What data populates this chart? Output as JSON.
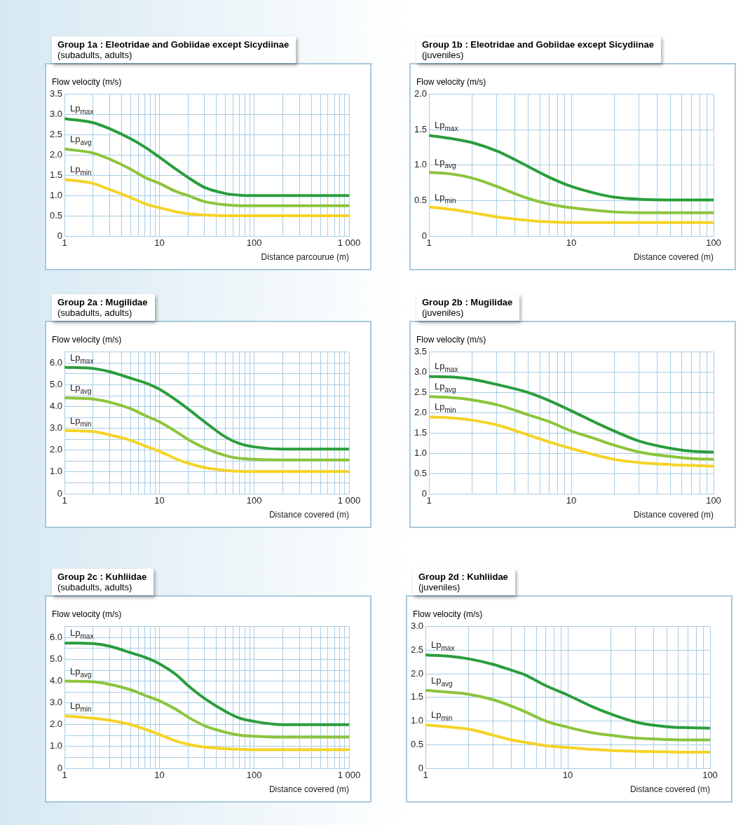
{
  "chart_data": [
    {
      "type": "line",
      "title": "Group 1a : Eleotridae and Gobiidae except Sicydiinae",
      "subtitle": "(subadults, adults)",
      "ylabel": "Flow velocity (m/s)",
      "xlabel": "Distance parcourue (m)",
      "log": "x",
      "grid": true,
      "xlim": [
        1,
        1000
      ],
      "ylim": [
        0,
        3.5
      ],
      "xticks": [
        1,
        {
          "value": 2,
          "label": null
        },
        {
          "value": 3,
          "label": null
        },
        {
          "value": 4,
          "label": null
        },
        {
          "value": 5,
          "label": null
        },
        {
          "value": 6,
          "label": null
        },
        {
          "value": 7,
          "label": null
        },
        {
          "value": 8,
          "label": null
        },
        {
          "value": 9,
          "label": null
        },
        10,
        {
          "value": 20,
          "label": null
        },
        {
          "value": 30,
          "label": null
        },
        {
          "value": 40,
          "label": null
        },
        {
          "value": 50,
          "label": null
        },
        {
          "value": 60,
          "label": null
        },
        {
          "value": 70,
          "label": null
        },
        {
          "value": 80,
          "label": null
        },
        {
          "value": 90,
          "label": null
        },
        100,
        {
          "value": 200,
          "label": null
        },
        {
          "value": 300,
          "label": null
        },
        {
          "value": 400,
          "label": null
        },
        {
          "value": 500,
          "label": null
        },
        {
          "value": 600,
          "label": null
        },
        {
          "value": 700,
          "label": null
        },
        {
          "value": 800,
          "label": null
        },
        {
          "value": 900,
          "label": null
        },
        {
          "value": 1000,
          "label": "1 000"
        }
      ],
      "yticks": [
        0,
        0.5,
        {
          "value": 1,
          "label": "1.0"
        },
        1.5,
        {
          "value": 2,
          "label": "2.0"
        },
        2.5,
        {
          "value": 3,
          "label": "3.0"
        },
        3.5
      ],
      "x": [
        1,
        2,
        3,
        5,
        7,
        10,
        15,
        20,
        30,
        50,
        70,
        100,
        1000
      ],
      "series": [
        {
          "name": "Lp$_{max}$",
          "color": "#2a9d3c",
          "values": [
            2.9,
            2.8,
            2.65,
            2.4,
            2.2,
            1.95,
            1.65,
            1.45,
            1.2,
            1.05,
            1.01,
            1.0,
            1.0
          ]
        },
        {
          "name": "Lp$_{avg}$",
          "color": "#8cc43c",
          "values": [
            2.15,
            2.05,
            1.9,
            1.65,
            1.45,
            1.3,
            1.1,
            1.0,
            0.85,
            0.77,
            0.75,
            0.75,
            0.75
          ]
        },
        {
          "name": "Lp$_{min}$",
          "color": "#f5d327",
          "values": [
            1.4,
            1.3,
            1.15,
            0.95,
            0.8,
            0.7,
            0.6,
            0.55,
            0.52,
            0.5,
            0.5,
            0.5,
            0.5
          ]
        }
      ]
    },
    {
      "type": "line",
      "title": "Group 1b : Eleotridae and Gobiidae except Sicydiinae",
      "subtitle": "(juveniles)",
      "ylabel": "Flow velocity (m/s)",
      "xlabel": "Distance covered (m)",
      "log": "x",
      "grid": true,
      "xlim": [
        1,
        100
      ],
      "ylim": [
        0,
        2
      ],
      "xticks": [
        1,
        {
          "value": 2,
          "label": null
        },
        {
          "value": 3,
          "label": null
        },
        {
          "value": 4,
          "label": null
        },
        {
          "value": 5,
          "label": null
        },
        {
          "value": 6,
          "label": null
        },
        {
          "value": 7,
          "label": null
        },
        {
          "value": 8,
          "label": null
        },
        {
          "value": 9,
          "label": null
        },
        10,
        {
          "value": 20,
          "label": null
        },
        {
          "value": 30,
          "label": null
        },
        {
          "value": 40,
          "label": null
        },
        {
          "value": 50,
          "label": null
        },
        {
          "value": 60,
          "label": null
        },
        {
          "value": 70,
          "label": null
        },
        {
          "value": 80,
          "label": null
        },
        {
          "value": 90,
          "label": null
        },
        100
      ],
      "yticks": [
        0,
        0.5,
        {
          "value": 1,
          "label": "1.0"
        },
        1.5,
        {
          "value": 2,
          "label": "2.0"
        }
      ],
      "x": [
        1,
        1.5,
        2,
        3,
        4,
        5,
        7,
        10,
        15,
        20,
        30,
        50,
        100
      ],
      "series": [
        {
          "name": "Lp$_{max}$",
          "color": "#2a9d3c",
          "values": [
            1.42,
            1.37,
            1.32,
            1.2,
            1.08,
            0.98,
            0.83,
            0.7,
            0.6,
            0.55,
            0.52,
            0.51,
            0.51
          ]
        },
        {
          "name": "Lp$_{avg}$",
          "color": "#8cc43c",
          "values": [
            0.9,
            0.87,
            0.82,
            0.7,
            0.6,
            0.53,
            0.45,
            0.4,
            0.36,
            0.34,
            0.33,
            0.33,
            0.33
          ]
        },
        {
          "name": "Lp$_{min}$",
          "color": "#f5d327",
          "values": [
            0.41,
            0.37,
            0.33,
            0.27,
            0.24,
            0.22,
            0.2,
            0.19,
            0.19,
            0.19,
            0.19,
            0.19,
            0.19
          ]
        }
      ]
    },
    {
      "type": "line",
      "title": "Group 2a : Mugilidae",
      "subtitle": "(subadults, adults)",
      "ylabel": "Flow velocity (m/s)",
      "xlabel": "Distance covered (m)",
      "log": "x",
      "grid": true,
      "xlim": [
        1,
        1000
      ],
      "ylim": [
        0,
        6.5
      ],
      "xticks": [
        1,
        {
          "value": 2,
          "label": null
        },
        {
          "value": 3,
          "label": null
        },
        {
          "value": 4,
          "label": null
        },
        {
          "value": 5,
          "label": null
        },
        {
          "value": 6,
          "label": null
        },
        {
          "value": 7,
          "label": null
        },
        {
          "value": 8,
          "label": null
        },
        {
          "value": 9,
          "label": null
        },
        10,
        {
          "value": 20,
          "label": null
        },
        {
          "value": 30,
          "label": null
        },
        {
          "value": 40,
          "label": null
        },
        {
          "value": 50,
          "label": null
        },
        {
          "value": 60,
          "label": null
        },
        {
          "value": 70,
          "label": null
        },
        {
          "value": 80,
          "label": null
        },
        {
          "value": 90,
          "label": null
        },
        100,
        {
          "value": 200,
          "label": null
        },
        {
          "value": 300,
          "label": null
        },
        {
          "value": 400,
          "label": null
        },
        {
          "value": 500,
          "label": null
        },
        {
          "value": 600,
          "label": null
        },
        {
          "value": 700,
          "label": null
        },
        {
          "value": 800,
          "label": null
        },
        {
          "value": 900,
          "label": null
        },
        {
          "value": 1000,
          "label": "1 000"
        }
      ],
      "yticks": [
        0,
        {
          "value": 0.5,
          "label": null
        },
        {
          "value": 1,
          "label": "1.0"
        },
        {
          "value": 1.5,
          "label": null
        },
        {
          "value": 2,
          "label": "2.0"
        },
        {
          "value": 2.5,
          "label": null
        },
        {
          "value": 3,
          "label": "3.0"
        },
        {
          "value": 3.5,
          "label": null
        },
        {
          "value": 4,
          "label": "4.0"
        },
        {
          "value": 4.5,
          "label": null
        },
        {
          "value": 5,
          "label": "5.0"
        },
        {
          "value": 5.5,
          "label": null
        },
        {
          "value": 6,
          "label": "6.0"
        },
        {
          "value": 6.5,
          "label": null
        }
      ],
      "x": [
        1,
        2,
        3,
        5,
        7,
        10,
        15,
        20,
        30,
        50,
        70,
        100,
        200,
        1000
      ],
      "series": [
        {
          "name": "Lp$_{max}$",
          "color": "#2a9d3c",
          "values": [
            5.8,
            5.75,
            5.6,
            5.3,
            5.1,
            4.8,
            4.3,
            3.9,
            3.3,
            2.6,
            2.3,
            2.15,
            2.05,
            2.05
          ]
        },
        {
          "name": "Lp$_{avg}$",
          "color": "#8cc43c",
          "values": [
            4.4,
            4.35,
            4.2,
            3.9,
            3.6,
            3.3,
            2.85,
            2.5,
            2.1,
            1.75,
            1.62,
            1.58,
            1.55,
            1.55
          ]
        },
        {
          "name": "Lp$_{min}$",
          "color": "#f5d327",
          "values": [
            2.9,
            2.85,
            2.7,
            2.45,
            2.2,
            1.95,
            1.6,
            1.4,
            1.2,
            1.07,
            1.03,
            1.02,
            1.02,
            1.02
          ]
        }
      ]
    },
    {
      "type": "line",
      "title": "Group 2b : Mugilidae",
      "subtitle": "(juveniles)",
      "ylabel": "Flow velocity (m/s)",
      "xlabel": "Distance covered (m)",
      "log": "x",
      "grid": true,
      "xlim": [
        1,
        100
      ],
      "ylim": [
        0,
        3.5
      ],
      "xticks": [
        1,
        {
          "value": 2,
          "label": null
        },
        {
          "value": 3,
          "label": null
        },
        {
          "value": 4,
          "label": null
        },
        {
          "value": 5,
          "label": null
        },
        {
          "value": 6,
          "label": null
        },
        {
          "value": 7,
          "label": null
        },
        {
          "value": 8,
          "label": null
        },
        {
          "value": 9,
          "label": null
        },
        10,
        {
          "value": 20,
          "label": null
        },
        {
          "value": 30,
          "label": null
        },
        {
          "value": 40,
          "label": null
        },
        {
          "value": 50,
          "label": null
        },
        {
          "value": 60,
          "label": null
        },
        {
          "value": 70,
          "label": null
        },
        {
          "value": 80,
          "label": null
        },
        {
          "value": 90,
          "label": null
        },
        100
      ],
      "yticks": [
        0,
        0.5,
        {
          "value": 1,
          "label": "1.0"
        },
        1.5,
        {
          "value": 2,
          "label": "2.0"
        },
        2.5,
        {
          "value": 3,
          "label": "3.0"
        },
        3.5
      ],
      "x": [
        1,
        1.5,
        2,
        3,
        5,
        7,
        10,
        15,
        20,
        30,
        50,
        70,
        100
      ],
      "series": [
        {
          "name": "Lp$_{max}$",
          "color": "#2a9d3c",
          "values": [
            2.9,
            2.88,
            2.83,
            2.7,
            2.5,
            2.3,
            2.05,
            1.75,
            1.55,
            1.3,
            1.12,
            1.05,
            1.03
          ]
        },
        {
          "name": "Lp$_{avg}$",
          "color": "#8cc43c",
          "values": [
            2.4,
            2.37,
            2.32,
            2.2,
            1.95,
            1.78,
            1.55,
            1.35,
            1.2,
            1.03,
            0.92,
            0.87,
            0.85
          ]
        },
        {
          "name": "Lp$_{min}$",
          "color": "#f5d327",
          "values": [
            1.9,
            1.87,
            1.82,
            1.7,
            1.45,
            1.28,
            1.12,
            0.95,
            0.85,
            0.77,
            0.72,
            0.7,
            0.68
          ]
        }
      ]
    },
    {
      "type": "line",
      "title": "Group 2c : Kuhliidae",
      "subtitle": "(subadults, adults)",
      "ylabel": "Flow velocity (m/s)",
      "xlabel": "Distance covered (m)",
      "log": "x",
      "grid": true,
      "xlim": [
        1,
        1000
      ],
      "ylim": [
        0,
        6.5
      ],
      "xticks": [
        1,
        {
          "value": 2,
          "label": null
        },
        {
          "value": 3,
          "label": null
        },
        {
          "value": 4,
          "label": null
        },
        {
          "value": 5,
          "label": null
        },
        {
          "value": 6,
          "label": null
        },
        {
          "value": 7,
          "label": null
        },
        {
          "value": 8,
          "label": null
        },
        {
          "value": 9,
          "label": null
        },
        10,
        {
          "value": 20,
          "label": null
        },
        {
          "value": 30,
          "label": null
        },
        {
          "value": 40,
          "label": null
        },
        {
          "value": 50,
          "label": null
        },
        {
          "value": 60,
          "label": null
        },
        {
          "value": 70,
          "label": null
        },
        {
          "value": 80,
          "label": null
        },
        {
          "value": 90,
          "label": null
        },
        100,
        {
          "value": 200,
          "label": null
        },
        {
          "value": 300,
          "label": null
        },
        {
          "value": 400,
          "label": null
        },
        {
          "value": 500,
          "label": null
        },
        {
          "value": 600,
          "label": null
        },
        {
          "value": 700,
          "label": null
        },
        {
          "value": 800,
          "label": null
        },
        {
          "value": 900,
          "label": null
        },
        {
          "value": 1000,
          "label": "1 000"
        }
      ],
      "yticks": [
        0,
        {
          "value": 0.5,
          "label": null
        },
        {
          "value": 1,
          "label": "1.0"
        },
        {
          "value": 1.5,
          "label": null
        },
        {
          "value": 2,
          "label": "2.0"
        },
        {
          "value": 2.5,
          "label": null
        },
        {
          "value": 3,
          "label": "3.0"
        },
        {
          "value": 3.5,
          "label": null
        },
        {
          "value": 4,
          "label": "4.0"
        },
        {
          "value": 4.5,
          "label": null
        },
        {
          "value": 5,
          "label": "5.0"
        },
        {
          "value": 5.5,
          "label": null
        },
        {
          "value": 6,
          "label": "6.0"
        },
        {
          "value": 6.5,
          "label": null
        }
      ],
      "x": [
        1,
        2,
        3,
        5,
        7,
        10,
        15,
        20,
        30,
        50,
        70,
        100,
        200,
        1000
      ],
      "series": [
        {
          "name": "Lp$_{max}$",
          "color": "#2a9d3c",
          "values": [
            5.75,
            5.72,
            5.6,
            5.3,
            5.1,
            4.8,
            4.3,
            3.8,
            3.2,
            2.6,
            2.3,
            2.15,
            2.0,
            2.0
          ]
        },
        {
          "name": "Lp$_{avg}$",
          "color": "#8cc43c",
          "values": [
            4.0,
            3.97,
            3.85,
            3.6,
            3.35,
            3.1,
            2.7,
            2.35,
            1.95,
            1.65,
            1.52,
            1.47,
            1.43,
            1.43
          ]
        },
        {
          "name": "Lp$_{min}$",
          "color": "#f5d327",
          "values": [
            2.4,
            2.3,
            2.2,
            2.0,
            1.8,
            1.55,
            1.25,
            1.1,
            0.97,
            0.9,
            0.87,
            0.85,
            0.85,
            0.85
          ]
        }
      ]
    },
    {
      "type": "line",
      "title": "Group 2d : Kuhliidae",
      "subtitle": "(juveniles)",
      "ylabel": "Flow velocity (m/s)",
      "xlabel": "Distance covered (m)",
      "log": "x",
      "grid": true,
      "xlim": [
        1,
        100
      ],
      "ylim": [
        0,
        3
      ],
      "xticks": [
        1,
        {
          "value": 2,
          "label": null
        },
        {
          "value": 3,
          "label": null
        },
        {
          "value": 4,
          "label": null
        },
        {
          "value": 5,
          "label": null
        },
        {
          "value": 6,
          "label": null
        },
        {
          "value": 7,
          "label": null
        },
        {
          "value": 8,
          "label": null
        },
        {
          "value": 9,
          "label": null
        },
        10,
        {
          "value": 20,
          "label": null
        },
        {
          "value": 30,
          "label": null
        },
        {
          "value": 40,
          "label": null
        },
        {
          "value": 50,
          "label": null
        },
        {
          "value": 60,
          "label": null
        },
        {
          "value": 70,
          "label": null
        },
        {
          "value": 80,
          "label": null
        },
        {
          "value": 90,
          "label": null
        },
        100
      ],
      "yticks": [
        0,
        0.5,
        {
          "value": 1,
          "label": "1.0"
        },
        1.5,
        {
          "value": 2,
          "label": "2.0"
        },
        2.5,
        {
          "value": 3,
          "label": "3.0"
        }
      ],
      "x": [
        1,
        1.5,
        2,
        3,
        4,
        5,
        7,
        10,
        15,
        20,
        30,
        50,
        70,
        100
      ],
      "series": [
        {
          "name": "Lp$_{max}$",
          "color": "#2a9d3c",
          "values": [
            2.4,
            2.37,
            2.32,
            2.2,
            2.08,
            1.98,
            1.75,
            1.55,
            1.3,
            1.15,
            0.98,
            0.88,
            0.86,
            0.85
          ]
        },
        {
          "name": "Lp$_{avg}$",
          "color": "#8cc43c",
          "values": [
            1.65,
            1.61,
            1.57,
            1.45,
            1.32,
            1.2,
            1.0,
            0.87,
            0.75,
            0.7,
            0.64,
            0.61,
            0.6,
            0.6
          ]
        },
        {
          "name": "Lp$_{min}$",
          "color": "#f5d327",
          "values": [
            0.92,
            0.87,
            0.83,
            0.7,
            0.6,
            0.55,
            0.48,
            0.44,
            0.4,
            0.38,
            0.36,
            0.35,
            0.34,
            0.34
          ]
        }
      ]
    }
  ]
}
